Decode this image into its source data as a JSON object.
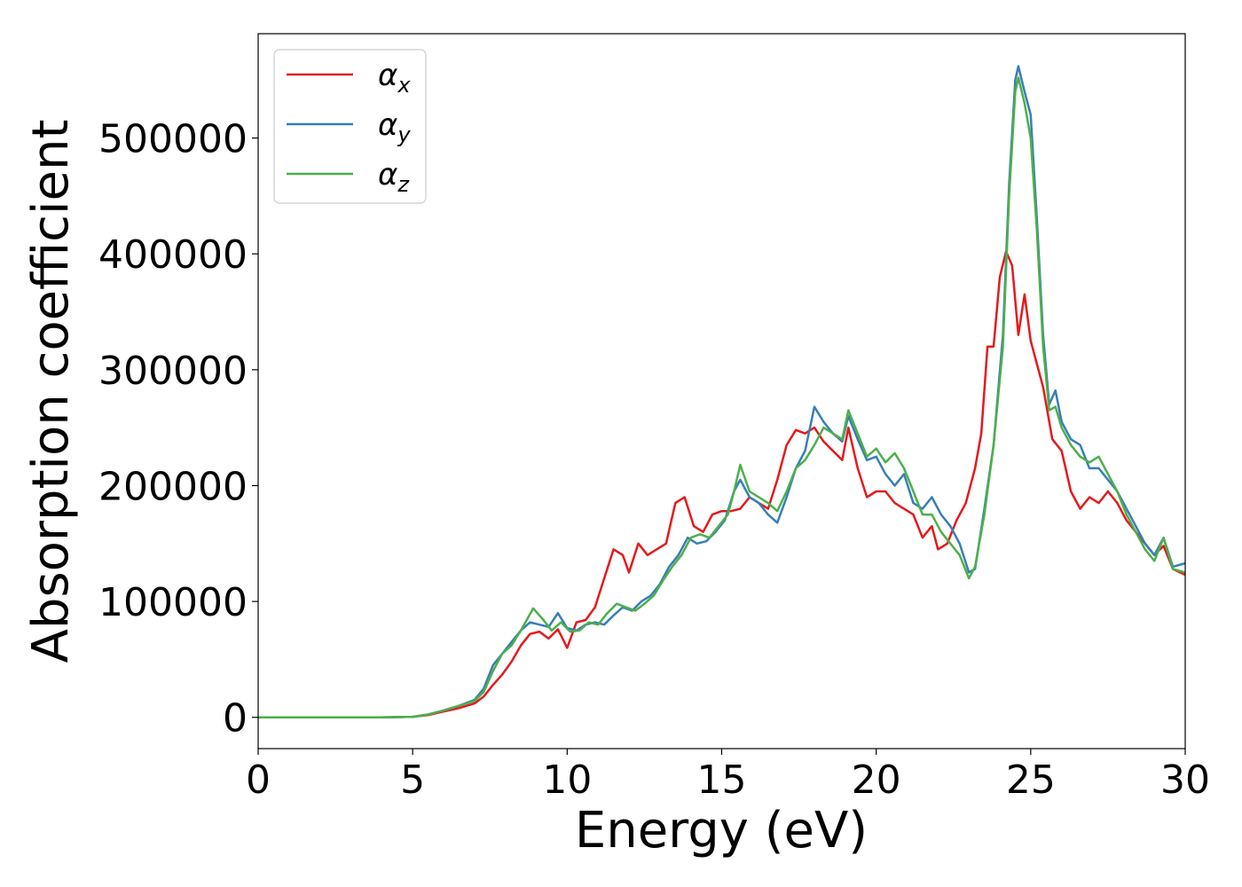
{
  "chart_data": {
    "type": "line",
    "title": "",
    "xlabel": "Energy (eV)",
    "ylabel": "Absorption coefficient",
    "xlim": [
      0,
      30
    ],
    "ylim": [
      -27000,
      590000
    ],
    "xticks": [
      0,
      5,
      10,
      15,
      20,
      25,
      30
    ],
    "xtick_labels": [
      "0",
      "5",
      "10",
      "15",
      "20",
      "25",
      "30"
    ],
    "yticks": [
      0,
      100000,
      200000,
      300000,
      400000,
      500000
    ],
    "ytick_labels": [
      "0",
      "100000",
      "200000",
      "300000",
      "400000",
      "500000"
    ],
    "grid": false,
    "legend_position": "top-left",
    "series": [
      {
        "name": "α",
        "subscript": "x",
        "color": "#e41a1c",
        "x": [
          0,
          1,
          2,
          3,
          4,
          5,
          5.5,
          6,
          6.5,
          7,
          7.3,
          7.6,
          7.9,
          8.2,
          8.5,
          8.8,
          9.1,
          9.4,
          9.7,
          10,
          10.3,
          10.6,
          10.9,
          11.2,
          11.5,
          11.8,
          12,
          12.3,
          12.6,
          12.9,
          13.2,
          13.5,
          13.8,
          14.1,
          14.4,
          14.7,
          15,
          15.3,
          15.6,
          15.9,
          16.2,
          16.5,
          16.8,
          17.1,
          17.4,
          17.7,
          18,
          18.3,
          18.6,
          18.9,
          19.1,
          19.4,
          19.7,
          20,
          20.3,
          20.6,
          20.9,
          21.2,
          21.5,
          21.8,
          22,
          22.3,
          22.6,
          22.9,
          23.2,
          23.4,
          23.6,
          23.8,
          24,
          24.2,
          24.4,
          24.6,
          24.8,
          25,
          25.2,
          25.4,
          25.7,
          26,
          26.3,
          26.6,
          26.9,
          27.2,
          27.5,
          27.8,
          28.1,
          28.4,
          28.7,
          29,
          29.3,
          29.6,
          30
        ],
        "values": [
          0,
          0,
          0,
          0,
          0,
          500,
          2000,
          5000,
          8000,
          12000,
          18000,
          28000,
          37000,
          48000,
          62000,
          72000,
          74000,
          68000,
          76000,
          60000,
          82000,
          84000,
          95000,
          120000,
          145000,
          140000,
          125000,
          150000,
          140000,
          145000,
          150000,
          185000,
          190000,
          165000,
          160000,
          175000,
          178000,
          178000,
          180000,
          190000,
          185000,
          180000,
          205000,
          235000,
          248000,
          245000,
          250000,
          238000,
          230000,
          222000,
          250000,
          215000,
          190000,
          195000,
          195000,
          185000,
          180000,
          175000,
          155000,
          165000,
          145000,
          150000,
          170000,
          185000,
          215000,
          245000,
          320000,
          320000,
          380000,
          402000,
          390000,
          330000,
          365000,
          325000,
          305000,
          285000,
          240000,
          230000,
          195000,
          180000,
          190000,
          185000,
          195000,
          185000,
          170000,
          160000,
          150000,
          140000,
          148000,
          128000,
          123000
        ]
      },
      {
        "name": "α",
        "subscript": "y",
        "color": "#377eb8",
        "x": [
          0,
          1,
          2,
          3,
          4,
          5,
          5.5,
          6,
          6.5,
          7,
          7.3,
          7.6,
          7.9,
          8.2,
          8.5,
          8.8,
          9.1,
          9.4,
          9.7,
          10,
          10.3,
          10.6,
          10.9,
          11.2,
          11.5,
          11.8,
          12.1,
          12.4,
          12.7,
          13,
          13.3,
          13.6,
          13.9,
          14.2,
          14.5,
          14.8,
          15.1,
          15.4,
          15.6,
          15.9,
          16.2,
          16.5,
          16.8,
          17.1,
          17.4,
          17.7,
          18,
          18.3,
          18.6,
          18.9,
          19.1,
          19.4,
          19.7,
          20,
          20.3,
          20.6,
          20.9,
          21.2,
          21.5,
          21.8,
          22.1,
          22.4,
          22.7,
          23,
          23.2,
          23.5,
          23.8,
          24.1,
          24.3,
          24.5,
          24.6,
          24.8,
          25,
          25.2,
          25.4,
          25.6,
          25.8,
          26,
          26.3,
          26.6,
          26.9,
          27.2,
          27.5,
          27.8,
          28.1,
          28.4,
          28.7,
          29,
          29.3,
          29.6,
          30
        ],
        "values": [
          0,
          0,
          0,
          0,
          0,
          500,
          2500,
          6000,
          10000,
          15000,
          25000,
          45000,
          55000,
          65000,
          75000,
          82000,
          80000,
          78000,
          90000,
          77000,
          75000,
          80000,
          82000,
          80000,
          88000,
          95000,
          92000,
          100000,
          105000,
          115000,
          130000,
          140000,
          155000,
          150000,
          152000,
          160000,
          170000,
          195000,
          205000,
          190000,
          185000,
          175000,
          168000,
          190000,
          215000,
          230000,
          268000,
          255000,
          245000,
          238000,
          260000,
          240000,
          222000,
          225000,
          210000,
          200000,
          210000,
          185000,
          180000,
          190000,
          175000,
          165000,
          150000,
          125000,
          128000,
          180000,
          235000,
          330000,
          460000,
          550000,
          562000,
          540000,
          520000,
          430000,
          330000,
          270000,
          282000,
          255000,
          240000,
          235000,
          215000,
          215000,
          205000,
          195000,
          180000,
          165000,
          150000,
          140000,
          155000,
          130000,
          133000
        ]
      },
      {
        "name": "α",
        "subscript": "z",
        "color": "#4daf4a",
        "x": [
          0,
          1,
          2,
          3,
          4,
          5,
          5.5,
          6,
          6.5,
          7,
          7.3,
          7.6,
          7.9,
          8.2,
          8.5,
          8.9,
          9.2,
          9.5,
          9.8,
          10.1,
          10.4,
          10.7,
          11,
          11.3,
          11.6,
          11.9,
          12.2,
          12.5,
          12.8,
          13.1,
          13.4,
          13.7,
          14,
          14.3,
          14.6,
          14.9,
          15.2,
          15.4,
          15.6,
          15.9,
          16.2,
          16.5,
          16.8,
          17.1,
          17.4,
          17.7,
          18,
          18.3,
          18.6,
          18.9,
          19.1,
          19.4,
          19.7,
          20,
          20.3,
          20.6,
          20.9,
          21.2,
          21.5,
          21.8,
          22.1,
          22.4,
          22.7,
          23,
          23.2,
          23.5,
          23.8,
          24.1,
          24.3,
          24.5,
          24.6,
          24.8,
          25,
          25.2,
          25.4,
          25.6,
          25.8,
          26,
          26.3,
          26.6,
          26.9,
          27.2,
          27.5,
          27.8,
          28.1,
          28.4,
          28.7,
          29,
          29.3,
          29.6,
          30
        ],
        "values": [
          0,
          0,
          0,
          0,
          0,
          500,
          2500,
          6000,
          10000,
          14000,
          22000,
          40000,
          55000,
          62000,
          75000,
          94000,
          85000,
          75000,
          82000,
          74000,
          75000,
          82000,
          80000,
          90000,
          98000,
          95000,
          92000,
          98000,
          105000,
          118000,
          130000,
          140000,
          155000,
          158000,
          155000,
          165000,
          175000,
          195000,
          218000,
          195000,
          190000,
          185000,
          178000,
          195000,
          215000,
          222000,
          235000,
          250000,
          245000,
          240000,
          265000,
          245000,
          225000,
          232000,
          220000,
          228000,
          215000,
          195000,
          175000,
          175000,
          160000,
          150000,
          140000,
          120000,
          130000,
          175000,
          235000,
          320000,
          450000,
          540000,
          552000,
          530000,
          500000,
          420000,
          320000,
          265000,
          268000,
          250000,
          235000,
          225000,
          220000,
          225000,
          210000,
          195000,
          175000,
          160000,
          145000,
          135000,
          155000,
          128000,
          125000
        ]
      }
    ]
  }
}
